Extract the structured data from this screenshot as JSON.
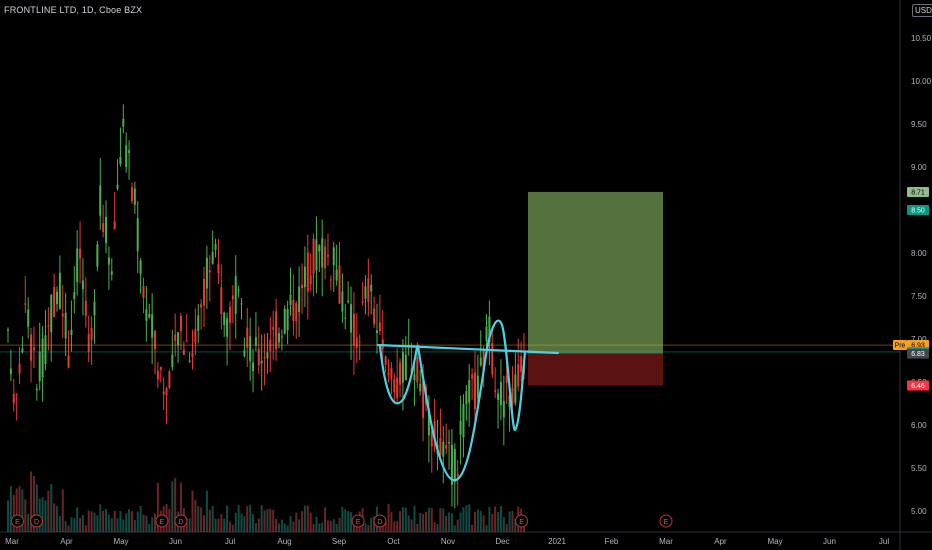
{
  "header": {
    "symbol_line": "FRONTLINE LTD, 1D, Cboe BZX",
    "currency": "USD"
  },
  "chart_data": {
    "type": "candlestick",
    "title": "FRONTLINE LTD, 1D, Cboe BZX",
    "y_axis": {
      "ticks": [
        "10.50",
        "10.00",
        "9.50",
        "9.00",
        "8.50",
        "8.00",
        "7.50",
        "7.00",
        "6.50",
        "6.00",
        "5.50",
        "5.00"
      ],
      "values": [
        10.5,
        10.0,
        9.5,
        9.0,
        8.5,
        8.0,
        7.5,
        7.0,
        6.5,
        6.0,
        5.5,
        5.0
      ],
      "ylim": [
        4.83,
        10.9
      ]
    },
    "x_axis": {
      "ticks": [
        "Mar",
        "Apr",
        "May",
        "Jun",
        "Jul",
        "Aug",
        "Sep",
        "Oct",
        "Nov",
        "Dec",
        "2021",
        "Feb",
        "Mar",
        "Apr",
        "May",
        "Jun",
        "Jul"
      ]
    },
    "price_tags": [
      {
        "label": "8.71",
        "value": 8.71,
        "bg": "#8fbc8f",
        "fg": "#000000"
      },
      {
        "label": "8.50",
        "value": 8.5,
        "bg": "#089981",
        "fg": "#ffffff"
      },
      {
        "label": "6.93",
        "value": 6.93,
        "bg": "#f7a021",
        "fg": "#000000",
        "prefix": "Pre"
      },
      {
        "label": "6.85",
        "value": 6.85,
        "bg": "#22ab94",
        "fg": "#ffffff"
      },
      {
        "label": "6.83",
        "value": 6.83,
        "bg": "#434651",
        "fg": "#ffffff"
      },
      {
        "label": "6.46",
        "value": 6.46,
        "bg": "#f23645",
        "fg": "#ffffff"
      }
    ],
    "position_tool": {
      "entry": 6.83,
      "target": 8.71,
      "stop": 6.46,
      "target_fill": "#6a8f4e",
      "stop_fill": "#6b1515"
    },
    "reference_lines": [
      6.93,
      6.85
    ],
    "events": [
      {
        "label": "E",
        "month_index": 0.1
      },
      {
        "label": "D",
        "month_index": 0.45
      },
      {
        "label": "E",
        "month_index": 2.75
      },
      {
        "label": "D",
        "month_index": 3.1
      },
      {
        "label": "E",
        "month_index": 6.35
      },
      {
        "label": "D",
        "month_index": 6.75
      },
      {
        "label": "E",
        "month_index": 9.35
      },
      {
        "label": "E",
        "month_index": 12.0
      }
    ],
    "drawing_color": "#4dd0e1",
    "up_color": "#26a69a",
    "down_color": "#ef5350",
    "candle_up_color": "#4caf50",
    "candle_down_color": "#e53935"
  }
}
